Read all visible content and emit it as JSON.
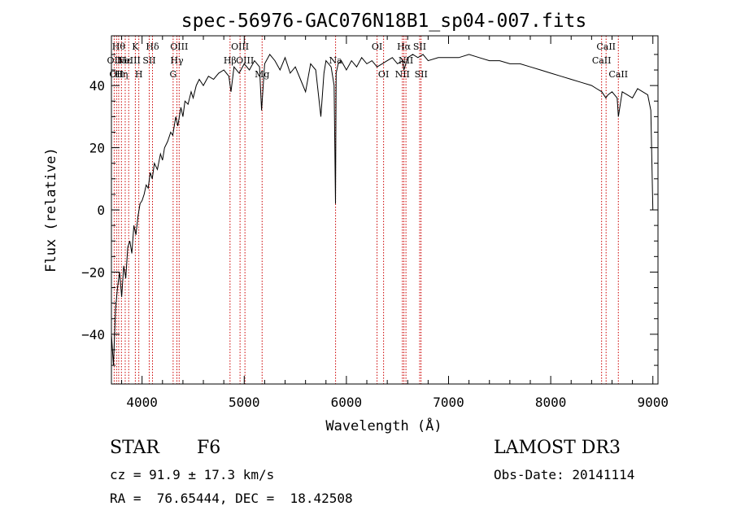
{
  "chart_data": {
    "type": "line",
    "title": "spec-56976-GAC076N18B1_sp04-007.fits",
    "xlabel": "Wavelength (Å)",
    "ylabel": "Flux (relative)",
    "xlim": [
      3700,
      9050
    ],
    "ylim": [
      -56,
      56
    ],
    "xticks": [
      4000,
      5000,
      6000,
      7000,
      8000,
      9000
    ],
    "yticks": [
      -40,
      -20,
      0,
      20,
      40
    ],
    "grid": false,
    "line_color": "#000000",
    "marker_color": "#cc0000",
    "series": [
      {
        "x": [
          3700,
          3720,
          3740,
          3760,
          3780,
          3800,
          3820,
          3840,
          3860,
          3880,
          3900,
          3920,
          3940,
          3960,
          3980,
          4000,
          4020,
          4040,
          4060,
          4080,
          4100,
          4120,
          4150,
          4180,
          4200,
          4220,
          4250,
          4280,
          4300,
          4330,
          4350,
          4380,
          4400,
          4420,
          4450,
          4480,
          4500,
          4530,
          4560,
          4600,
          4650,
          4700,
          4750,
          4800,
          4850,
          4870,
          4900,
          4950,
          5000,
          5050,
          5100,
          5150,
          5170,
          5200,
          5250,
          5300,
          5350,
          5400,
          5450,
          5500,
          5550,
          5600,
          5650,
          5700,
          5750,
          5780,
          5800,
          5850,
          5880,
          5893,
          5900,
          5920,
          5950,
          6000,
          6050,
          6100,
          6150,
          6200,
          6250,
          6300,
          6350,
          6400,
          6450,
          6500,
          6550,
          6563,
          6600,
          6650,
          6700,
          6750,
          6800,
          6900,
          7000,
          7100,
          7200,
          7300,
          7400,
          7500,
          7600,
          7700,
          7800,
          7900,
          8000,
          8100,
          8200,
          8300,
          8400,
          8450,
          8500,
          8540,
          8560,
          8600,
          8650,
          8662,
          8700,
          8750,
          8800,
          8850,
          8900,
          8950,
          8980,
          9000
        ],
        "y": [
          -40,
          -50,
          -32,
          -25,
          -20,
          -28,
          -18,
          -22,
          -12,
          -10,
          -14,
          -5,
          -8,
          -2,
          2,
          3,
          5,
          8,
          7,
          12,
          10,
          15,
          13,
          18,
          16,
          20,
          22,
          25,
          24,
          30,
          27,
          33,
          30,
          35,
          34,
          38,
          36,
          40,
          42,
          40,
          43,
          42,
          44,
          45,
          43,
          38,
          46,
          44,
          47,
          45,
          48,
          46,
          32,
          47,
          50,
          48,
          45,
          49,
          44,
          46,
          42,
          38,
          47,
          45,
          30,
          44,
          48,
          46,
          40,
          2,
          44,
          47,
          48,
          45,
          48,
          46,
          49,
          47,
          48,
          46,
          47,
          48,
          49,
          47,
          48,
          45,
          49,
          50,
          49,
          50,
          48,
          49,
          49,
          49,
          50,
          49,
          48,
          48,
          47,
          47,
          46,
          45,
          44,
          43,
          42,
          41,
          40,
          39,
          38,
          36,
          37,
          38,
          36,
          30,
          38,
          37,
          36,
          39,
          38,
          37,
          32,
          0
        ]
      }
    ],
    "line_markers": [
      {
        "x": 3727,
        "label": "OII",
        "row": 2
      },
      {
        "x": 3750,
        "label": "OII",
        "row": 3
      },
      {
        "x": 3771,
        "label": "Hθ",
        "row": 1
      },
      {
        "x": 3798,
        "label": "Hη",
        "row": 3
      },
      {
        "x": 3835,
        "label": "Hε",
        "row": 2
      },
      {
        "x": 3869,
        "label": "NeIII",
        "row": 2
      },
      {
        "x": 3934,
        "label": "K",
        "row": 1
      },
      {
        "x": 3968,
        "label": "H",
        "row": 3
      },
      {
        "x": 4070,
        "label": "SII",
        "row": 2
      },
      {
        "x": 4102,
        "label": "Hδ",
        "row": 1
      },
      {
        "x": 4304,
        "label": "G",
        "row": 3
      },
      {
        "x": 4341,
        "label": "Hγ",
        "row": 2
      },
      {
        "x": 4363,
        "label": "OIII",
        "row": 1
      },
      {
        "x": 4861,
        "label": "Hβ",
        "row": 2
      },
      {
        "x": 4959,
        "label": "OIII",
        "row": 1
      },
      {
        "x": 5007,
        "label": "OIII",
        "row": 2
      },
      {
        "x": 5175,
        "label": "Mg",
        "row": 3
      },
      {
        "x": 5894,
        "label": "Na",
        "row": 2
      },
      {
        "x": 6300,
        "label": "OI",
        "row": 1
      },
      {
        "x": 6364,
        "label": "OI",
        "row": 3
      },
      {
        "x": 6548,
        "label": "NII",
        "row": 3
      },
      {
        "x": 6563,
        "label": "Hα",
        "row": 1
      },
      {
        "x": 6583,
        "label": "NII",
        "row": 2
      },
      {
        "x": 6717,
        "label": "SII",
        "row": 1
      },
      {
        "x": 6731,
        "label": "SII",
        "row": 3
      },
      {
        "x": 8498,
        "label": "CaII",
        "row": 2
      },
      {
        "x": 8542,
        "label": "CaII",
        "row": 1
      },
      {
        "x": 8662,
        "label": "CaII",
        "row": 3
      }
    ]
  },
  "info": {
    "object_class": "STAR",
    "subclass": "F6",
    "survey": "LAMOST DR3",
    "cz": "cz = 91.9 ± 17.3 km/s",
    "obs_date": "Obs-Date: 20141114",
    "coords": "RA =  76.65444, DEC =  18.42508"
  }
}
